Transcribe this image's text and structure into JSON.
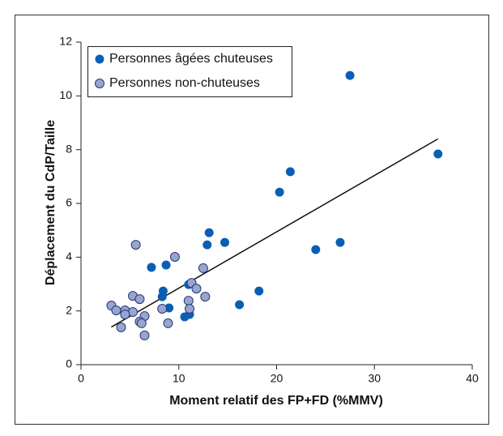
{
  "chart_data": {
    "type": "scatter",
    "xlabel": "Moment relatif des FP+FD (%MMV)",
    "ylabel": "Déplacement du CdP/Taille",
    "xlim": [
      0,
      40
    ],
    "ylim": [
      0,
      12
    ],
    "xticks": [
      0,
      10,
      20,
      30,
      40
    ],
    "yticks": [
      0,
      2,
      4,
      6,
      8,
      10,
      12
    ],
    "series": [
      {
        "name": "Personnes âgées chuteuses",
        "color": "#0a5fb4",
        "x": [
          27.5,
          36.5,
          21.4,
          20.3,
          26.5,
          24.0,
          14.7,
          13.1,
          12.9,
          7.2,
          8.7,
          18.2,
          16.2,
          8.4,
          8.3,
          11.0,
          9.0,
          10.6,
          11.1
        ],
        "values": [
          10.76,
          7.84,
          7.18,
          6.42,
          4.55,
          4.28,
          4.55,
          4.91,
          4.46,
          3.62,
          3.71,
          2.74,
          2.23,
          2.74,
          2.53,
          2.98,
          2.11,
          1.78,
          1.87
        ]
      },
      {
        "name": "Personnes non-chuteuses",
        "color": "#9aa4cc",
        "x": [
          5.6,
          9.6,
          12.5,
          11.3,
          11.8,
          5.3,
          6.0,
          12.7,
          11.0,
          3.1,
          3.6,
          4.5,
          5.3,
          8.3,
          11.1,
          4.5,
          6.5,
          6.0,
          6.2,
          8.9,
          4.1,
          6.5
        ],
        "values": [
          4.46,
          4.01,
          3.59,
          3.04,
          2.83,
          2.56,
          2.44,
          2.53,
          2.38,
          2.2,
          2.02,
          2.02,
          1.96,
          2.08,
          2.08,
          1.87,
          1.81,
          1.6,
          1.54,
          1.54,
          1.39,
          1.09
        ]
      }
    ],
    "trendline": {
      "x": [
        3.1,
        36.5
      ],
      "y": [
        1.4,
        8.4
      ]
    },
    "legend": "upper left"
  }
}
